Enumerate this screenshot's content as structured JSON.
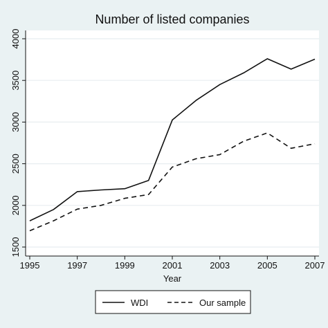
{
  "chart_data": {
    "type": "line",
    "title": "Number of listed companies",
    "xlabel": "Year",
    "ylabel": "",
    "xlim": [
      1995,
      2007
    ],
    "ylim": [
      1500,
      4000
    ],
    "xticks": [
      1995,
      1997,
      1999,
      2001,
      2003,
      2005,
      2007
    ],
    "yticks": [
      1500,
      2000,
      2500,
      3000,
      3500,
      4000
    ],
    "grid": true,
    "legend_position": "bottom",
    "x": [
      1995,
      1996,
      1997,
      1998,
      1999,
      2000,
      2001,
      2002,
      2003,
      2004,
      2005,
      2006,
      2007
    ],
    "series": [
      {
        "name": "WDI",
        "style": "solid",
        "color": "#111111",
        "values": [
          1815,
          1950,
          2165,
          2185,
          2200,
          2300,
          3025,
          3260,
          3450,
          3590,
          3760,
          3635,
          3755
        ]
      },
      {
        "name": "Our sample",
        "style": "dashed",
        "color": "#111111",
        "values": [
          1695,
          1815,
          1955,
          2000,
          2085,
          2130,
          2460,
          2560,
          2610,
          2770,
          2870,
          2685,
          2740
        ]
      }
    ]
  },
  "colors": {
    "background": "#eaf2f3",
    "plot_background": "#ffffff",
    "gridline": "#e8eef0",
    "ink": "#111111"
  }
}
